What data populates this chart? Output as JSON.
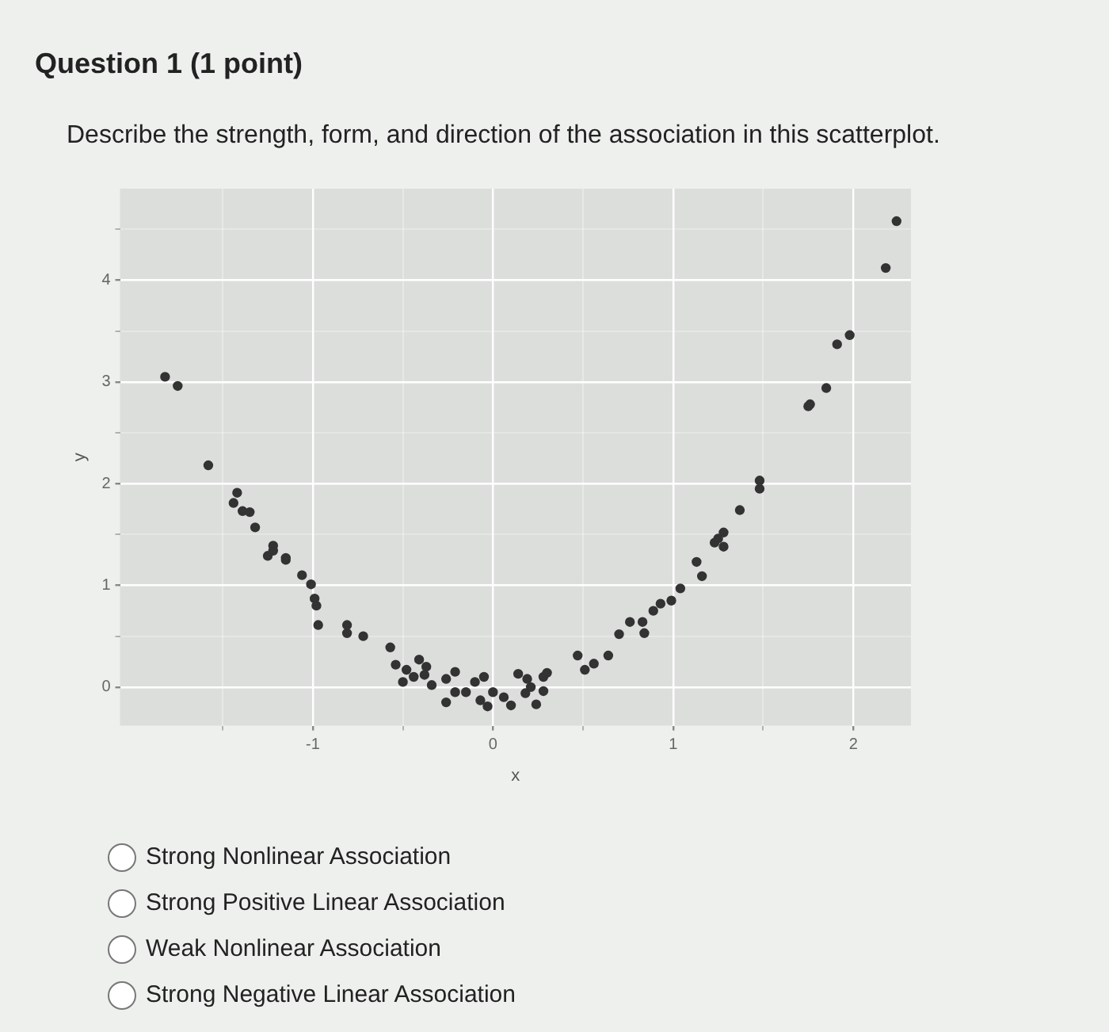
{
  "chart_data": {
    "type": "scatter",
    "title": "Question 1 (1 point)",
    "subtitle": "Describe the strength, form, and direction of the association in this scatterplot.",
    "xlabel": "x",
    "ylabel": "y",
    "annotations": [
      "Strong Nonlinear Association",
      "Strong Positive Linear Association",
      "Weak Nonlinear Association",
      "Strong Negative Linear Association"
    ],
    "xlim": [
      -2.07,
      2.32
    ],
    "ylim": [
      -0.38,
      4.9
    ],
    "xticks": [
      {
        "value": -1.5,
        "label": null
      },
      -1,
      {
        "value": -0.5,
        "label": null
      },
      0,
      {
        "value": 0.5,
        "label": null
      },
      1,
      {
        "value": 1.5,
        "label": null
      },
      2
    ],
    "yticks": [
      0,
      {
        "value": 0.5,
        "label": null
      },
      1,
      {
        "value": 1.5,
        "label": null
      },
      2,
      {
        "value": 2.5,
        "label": null
      },
      3,
      {
        "value": 3.5,
        "label": null
      },
      4,
      {
        "value": 4.5,
        "label": null
      }
    ],
    "grid": true,
    "legend": false,
    "marker": "circle",
    "series": [
      {
        "color": "#333333",
        "x": [
          -1.82,
          -1.75,
          -1.58,
          -1.44,
          -1.42,
          -1.39,
          -1.35,
          -1.32,
          -1.25,
          -1.22,
          -1.22,
          -1.15,
          -1.15,
          -1.06,
          -1.01,
          -0.99,
          -0.98,
          -0.97,
          -0.81,
          -0.81,
          -0.72,
          -0.57,
          -0.54,
          -0.48,
          -0.5,
          -0.44,
          -0.41,
          -0.38,
          -0.37,
          -0.34,
          -0.26,
          -0.26,
          -0.21,
          -0.21,
          -0.15,
          -0.1,
          -0.07,
          -0.05,
          -0.03,
          0.0,
          0.06,
          0.1,
          0.14,
          0.18,
          0.19,
          0.21,
          0.24,
          0.28,
          0.28,
          0.3,
          0.47,
          0.51,
          0.56,
          0.64,
          0.7,
          0.76,
          0.83,
          0.84,
          0.89,
          0.93,
          0.99,
          1.04,
          1.13,
          1.16,
          1.23,
          1.25,
          1.28,
          1.28,
          1.37,
          1.48,
          1.48,
          1.75,
          1.76,
          1.85,
          1.91,
          1.98,
          2.18,
          2.24
        ],
        "values": [
          3.05,
          2.96,
          2.18,
          1.81,
          1.91,
          1.73,
          1.72,
          1.57,
          1.29,
          1.39,
          1.34,
          1.27,
          1.25,
          1.1,
          1.01,
          0.87,
          0.8,
          0.61,
          0.61,
          0.53,
          0.5,
          0.39,
          0.22,
          0.17,
          0.05,
          0.1,
          0.27,
          0.12,
          0.2,
          0.02,
          0.08,
          -0.15,
          0.15,
          -0.05,
          -0.05,
          0.05,
          -0.13,
          0.1,
          -0.19,
          -0.05,
          -0.1,
          -0.18,
          0.13,
          -0.06,
          0.08,
          0.0,
          -0.17,
          -0.04,
          0.1,
          0.14,
          0.31,
          0.17,
          0.23,
          0.31,
          0.52,
          0.64,
          0.64,
          0.53,
          0.75,
          0.82,
          0.85,
          0.97,
          1.23,
          1.09,
          1.42,
          1.46,
          1.52,
          1.38,
          1.74,
          2.03,
          1.95,
          2.76,
          2.78,
          2.94,
          3.37,
          3.46,
          4.12,
          4.58
        ]
      }
    ]
  }
}
